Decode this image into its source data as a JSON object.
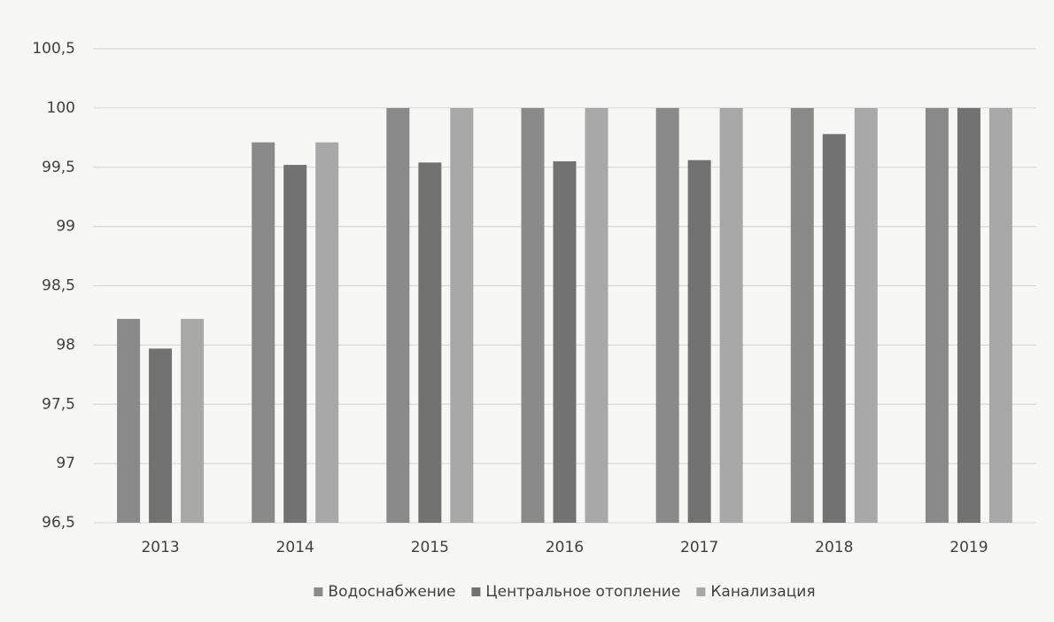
{
  "chart_data": {
    "type": "bar",
    "categories": [
      "2013",
      "2014",
      "2015",
      "2016",
      "2017",
      "2018",
      "2019"
    ],
    "series": [
      {
        "name": "Водоснабжение",
        "color": "#8a8a8a",
        "values": [
          98.22,
          99.71,
          100,
          100,
          100,
          100,
          100
        ]
      },
      {
        "name": "Центральное отопление",
        "color": "#727272",
        "values": [
          97.97,
          99.52,
          99.54,
          99.55,
          99.56,
          99.78,
          100
        ]
      },
      {
        "name": "Канализация",
        "color": "#a8a8a8",
        "values": [
          98.22,
          99.71,
          100,
          100,
          100,
          100,
          100
        ]
      }
    ],
    "ylim": [
      96.5,
      100.5
    ],
    "yticks": [
      {
        "value": 96.5,
        "label": "96,5"
      },
      97,
      {
        "value": 97.5,
        "label": "97,5"
      },
      98,
      {
        "value": 98.5,
        "label": "98,5"
      },
      99,
      {
        "value": 99.5,
        "label": "99,5"
      },
      100,
      {
        "value": 100.5,
        "label": "100,5"
      }
    ],
    "grid": true,
    "legend": "bottom"
  }
}
